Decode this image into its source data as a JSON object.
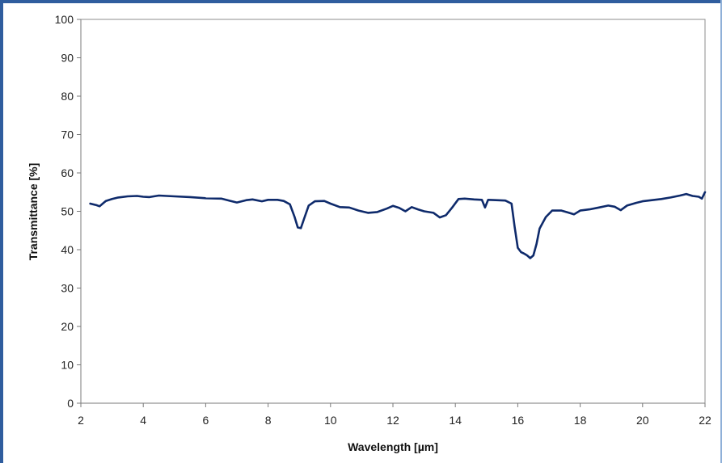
{
  "chart_data": {
    "type": "line",
    "title": "",
    "xlabel": "Wavelength [µm]",
    "ylabel": "Transmittance [%]",
    "xlim": [
      2,
      22
    ],
    "ylim": [
      0,
      100
    ],
    "x_ticks": [
      "2",
      "4",
      "6",
      "8",
      "10",
      "12",
      "14",
      "16",
      "18",
      "20",
      "22"
    ],
    "y_ticks": [
      "0",
      "10",
      "20",
      "30",
      "40",
      "50",
      "60",
      "70",
      "80",
      "90",
      "100"
    ],
    "grid": false,
    "legend": "none",
    "series": [
      {
        "color": "#0e2a6b",
        "x": [
          2.3,
          2.5,
          2.6,
          2.7,
          2.8,
          3.0,
          3.2,
          3.5,
          3.8,
          4.0,
          4.2,
          4.5,
          5.0,
          5.5,
          6.0,
          6.5,
          6.8,
          7.0,
          7.3,
          7.5,
          7.8,
          8.0,
          8.3,
          8.5,
          8.7,
          8.85,
          8.95,
          9.05,
          9.15,
          9.3,
          9.5,
          9.8,
          10.0,
          10.3,
          10.6,
          10.9,
          11.2,
          11.5,
          11.8,
          12.0,
          12.2,
          12.4,
          12.6,
          12.8,
          13.0,
          13.3,
          13.5,
          13.7,
          13.9,
          14.1,
          14.3,
          14.6,
          14.85,
          14.95,
          15.05,
          15.3,
          15.6,
          15.8,
          15.9,
          16.0,
          16.1,
          16.2,
          16.3,
          16.4,
          16.5,
          16.6,
          16.7,
          16.9,
          17.1,
          17.4,
          17.6,
          17.8,
          18.0,
          18.3,
          18.6,
          18.9,
          19.1,
          19.3,
          19.5,
          19.8,
          20.0,
          20.3,
          20.6,
          20.9,
          21.2,
          21.4,
          21.6,
          21.8,
          21.9,
          22.0
        ],
        "y": [
          52.0,
          51.6,
          51.3,
          52.0,
          52.7,
          53.2,
          53.6,
          53.9,
          54.0,
          53.8,
          53.7,
          54.1,
          53.9,
          53.7,
          53.4,
          53.3,
          52.7,
          52.3,
          52.9,
          53.1,
          52.6,
          53.0,
          53.0,
          52.7,
          51.8,
          48.5,
          45.8,
          45.6,
          48.0,
          51.5,
          52.6,
          52.7,
          52.0,
          51.1,
          51.0,
          50.2,
          49.6,
          49.8,
          50.7,
          51.4,
          50.9,
          50.0,
          51.1,
          50.5,
          50.0,
          49.6,
          48.4,
          49.0,
          51.0,
          53.2,
          53.3,
          53.1,
          53.0,
          51.0,
          53.0,
          52.9,
          52.8,
          52.0,
          46.0,
          40.5,
          39.4,
          39.0,
          38.5,
          37.8,
          38.5,
          41.5,
          45.5,
          48.5,
          50.2,
          50.2,
          49.7,
          49.2,
          50.2,
          50.5,
          51.0,
          51.5,
          51.2,
          50.3,
          51.5,
          52.2,
          52.6,
          52.9,
          53.2,
          53.6,
          54.1,
          54.5,
          54.0,
          53.8,
          53.3,
          55.0
        ]
      }
    ]
  }
}
